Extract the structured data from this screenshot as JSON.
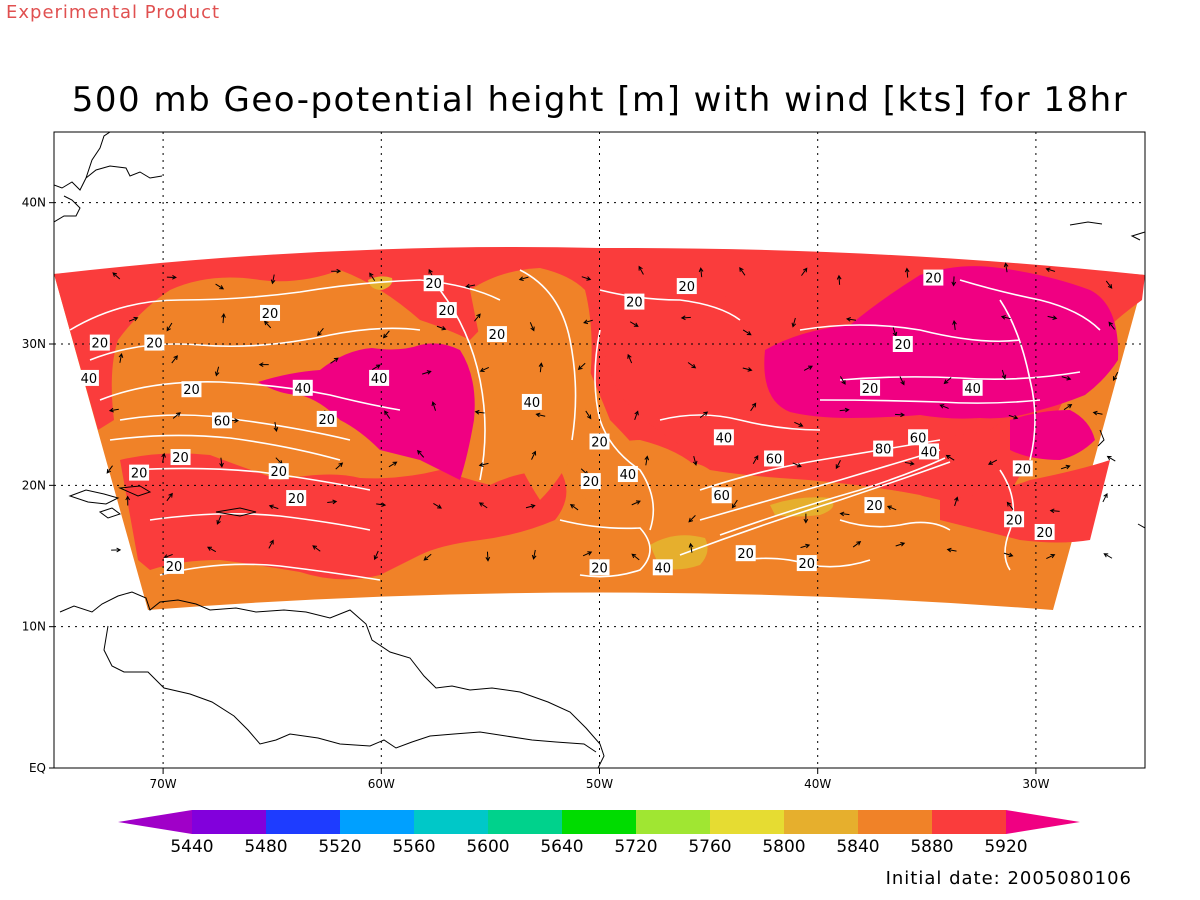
{
  "header": {
    "experimental": "Experimental Product",
    "title": "500 mb Geo-potential height [m] with wind [kts] for 18hr"
  },
  "footer": {
    "initial_date": "Initial date: 2005080106"
  },
  "map": {
    "lon_range": [
      -75,
      -25
    ],
    "lat_range": [
      0,
      45
    ],
    "lon_ticks": [
      {
        "lon": -70,
        "label": "70W"
      },
      {
        "lon": -60,
        "label": "60W"
      },
      {
        "lon": -50,
        "label": "50W"
      },
      {
        "lon": -40,
        "label": "40W"
      },
      {
        "lon": -30,
        "label": "30W"
      }
    ],
    "lat_ticks": [
      {
        "lat": 0,
        "label": "EQ"
      },
      {
        "lat": 10,
        "label": "10N"
      },
      {
        "lat": 20,
        "label": "20N"
      },
      {
        "lat": 30,
        "label": "30N"
      },
      {
        "lat": 40,
        "label": "40N"
      }
    ],
    "grid": "dotted",
    "isotach_labels": [
      {
        "v": "20",
        "lon": -65.1,
        "lat": 32.2
      },
      {
        "v": "20",
        "lon": -72.9,
        "lat": 30.1
      },
      {
        "v": "20",
        "lon": -70.4,
        "lat": 30.1
      },
      {
        "v": "40",
        "lon": -73.4,
        "lat": 27.6
      },
      {
        "v": "20",
        "lon": -68.7,
        "lat": 26.8
      },
      {
        "v": "40",
        "lon": -63.6,
        "lat": 26.9
      },
      {
        "v": "60",
        "lon": -67.3,
        "lat": 24.6
      },
      {
        "v": "20",
        "lon": -62.5,
        "lat": 24.7
      },
      {
        "v": "40",
        "lon": -60.1,
        "lat": 27.6
      },
      {
        "v": "20",
        "lon": -69.2,
        "lat": 22.0
      },
      {
        "v": "20",
        "lon": -71.1,
        "lat": 20.9
      },
      {
        "v": "20",
        "lon": -64.7,
        "lat": 21.0
      },
      {
        "v": "20",
        "lon": -63.9,
        "lat": 19.1
      },
      {
        "v": "20",
        "lon": -69.5,
        "lat": 14.3
      },
      {
        "v": "20",
        "lon": -57.6,
        "lat": 34.3
      },
      {
        "v": "20",
        "lon": -57.0,
        "lat": 32.4
      },
      {
        "v": "20",
        "lon": -54.7,
        "lat": 30.7
      },
      {
        "v": "40",
        "lon": -53.1,
        "lat": 25.9
      },
      {
        "v": "20",
        "lon": -50.0,
        "lat": 23.1
      },
      {
        "v": "20",
        "lon": -50.4,
        "lat": 20.3
      },
      {
        "v": "40",
        "lon": -48.7,
        "lat": 20.8
      },
      {
        "v": "20",
        "lon": -48.4,
        "lat": 33.0
      },
      {
        "v": "20",
        "lon": -46.0,
        "lat": 34.1
      },
      {
        "v": "40",
        "lon": -44.3,
        "lat": 23.4
      },
      {
        "v": "60",
        "lon": -42.0,
        "lat": 21.9
      },
      {
        "v": "60",
        "lon": -44.4,
        "lat": 19.3
      },
      {
        "v": "20",
        "lon": -43.3,
        "lat": 15.2
      },
      {
        "v": "20",
        "lon": -50.0,
        "lat": 14.2
      },
      {
        "v": "40",
        "lon": -47.1,
        "lat": 14.2
      },
      {
        "v": "20",
        "lon": -40.5,
        "lat": 14.5
      },
      {
        "v": "20",
        "lon": -37.4,
        "lat": 18.6
      },
      {
        "v": "80",
        "lon": -37.0,
        "lat": 22.6
      },
      {
        "v": "60",
        "lon": -35.4,
        "lat": 23.4
      },
      {
        "v": "40",
        "lon": -34.9,
        "lat": 22.4
      },
      {
        "v": "20",
        "lon": -36.1,
        "lat": 30.0
      },
      {
        "v": "20",
        "lon": -37.6,
        "lat": 26.9
      },
      {
        "v": "40",
        "lon": -32.9,
        "lat": 26.9
      },
      {
        "v": "20",
        "lon": -34.7,
        "lat": 34.7
      },
      {
        "v": "20",
        "lon": -30.6,
        "lat": 21.2
      },
      {
        "v": "20",
        "lon": -31.0,
        "lat": 17.6
      },
      {
        "v": "20",
        "lon": -29.6,
        "lat": 16.7
      }
    ]
  },
  "colorbar": {
    "labels": [
      "5440",
      "5480",
      "5520",
      "5560",
      "5600",
      "5640",
      "5720",
      "5760",
      "5800",
      "5840",
      "5880",
      "5920"
    ],
    "colors": [
      "#a000c8",
      "#8200dc",
      "#1e3cff",
      "#00a0ff",
      "#00c8c8",
      "#00d28c",
      "#00dc00",
      "#a0e632",
      "#e6dc32",
      "#e6af2d",
      "#f08228",
      "#fa3c3c",
      "#f00082"
    ],
    "color_roles": {
      "mid_low": "#e6af2d",
      "low": "#f08228",
      "mid": "#fa3c3c",
      "high": "#f00082",
      "contour": "#ffffff",
      "coast": "#000000"
    }
  }
}
